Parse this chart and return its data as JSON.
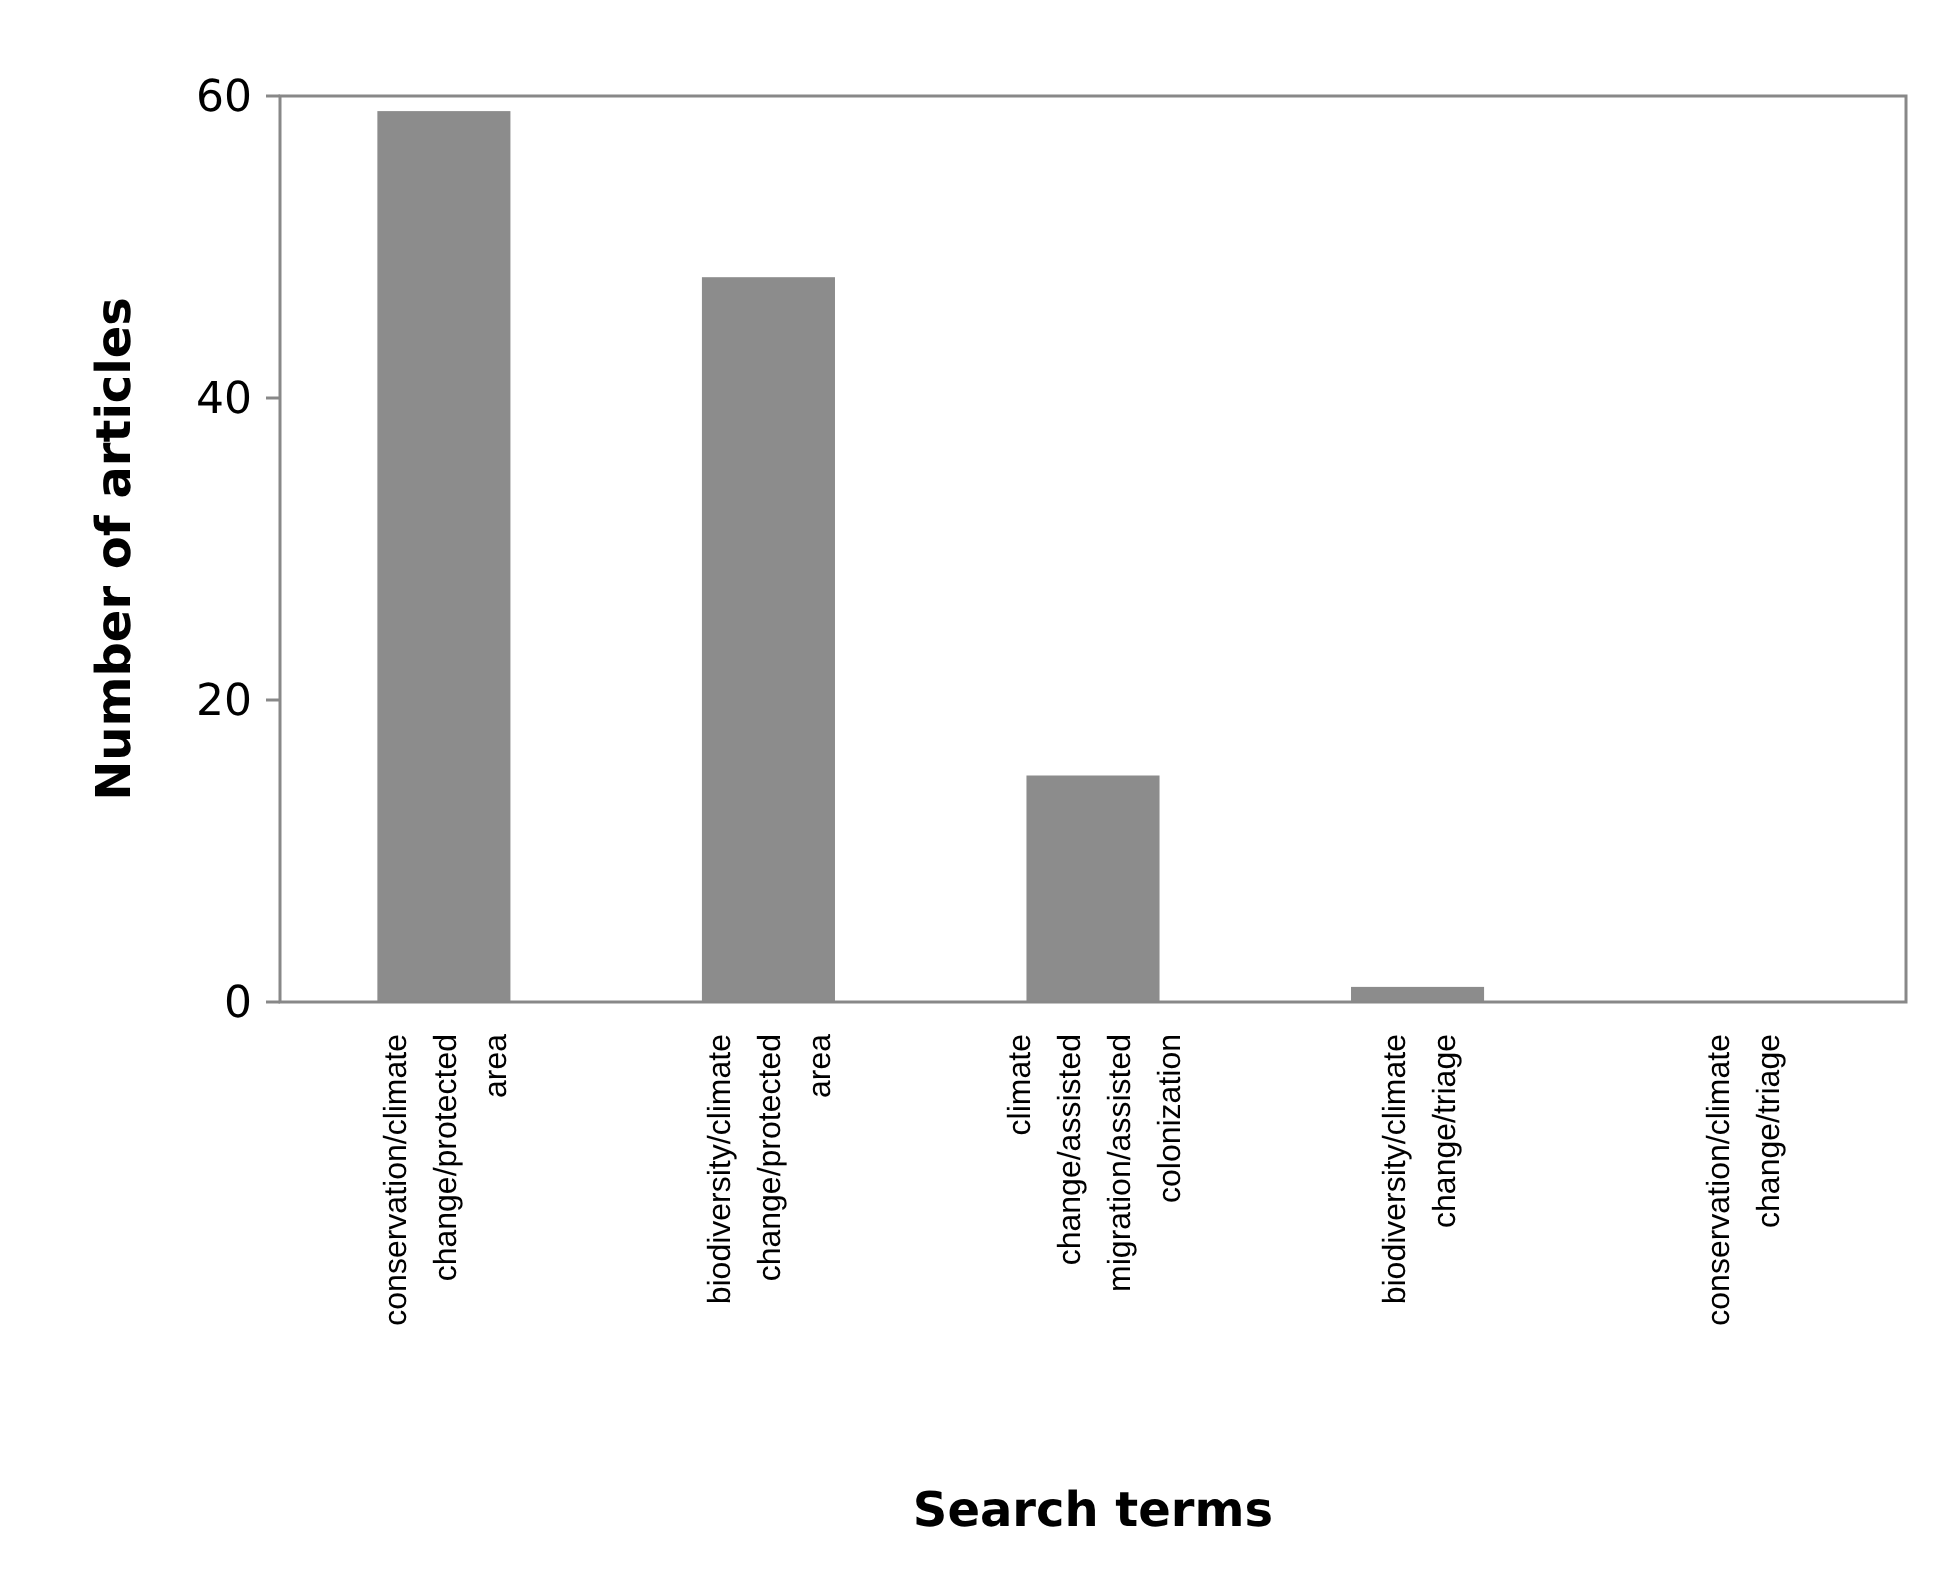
{
  "chart_data": {
    "type": "bar",
    "xlabel": "Search terms",
    "ylabel": "Number of articles",
    "categories": [
      "conservation/climate change/protected area",
      "biodiversity/climate change/protected area",
      "climate change/assisted migration/assisted colonization",
      "biodiversity/climate change/triage",
      "conservation/climate change/triage"
    ],
    "values": [
      59,
      48,
      15,
      1,
      0
    ],
    "color": "#8c8c8c",
    "ylim": [
      0,
      60
    ],
    "yticks": [
      0,
      20,
      40,
      60
    ],
    "grid": false
  }
}
